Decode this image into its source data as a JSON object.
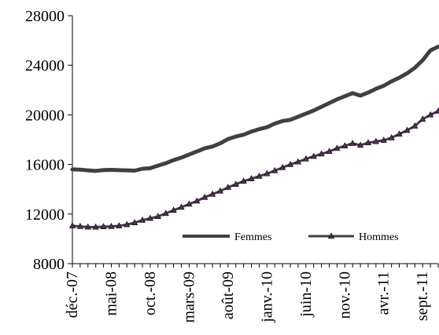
{
  "chart_data": {
    "type": "line",
    "title": "",
    "xlabel": "",
    "ylabel": "",
    "ylim": [
      8000,
      28000
    ],
    "yticks": [
      8000,
      12000,
      16000,
      20000,
      24000,
      28000
    ],
    "x_tick_labels": [
      "déc.-07",
      "mai-08",
      "oct.-08",
      "mars-09",
      "août-09",
      "janv.-10",
      "juin-10",
      "nov.-10",
      "avr.-11",
      "sept.-11"
    ],
    "x": [
      "déc.-07",
      "janv.-08",
      "févr.-08",
      "mars-08",
      "avr.-08",
      "mai-08",
      "juin-08",
      "juil.-08",
      "août-08",
      "sept.-08",
      "oct.-08",
      "nov.-08",
      "déc.-08",
      "janv.-09",
      "févr.-09",
      "mars-09",
      "avr.-09",
      "mai-09",
      "juin-09",
      "juil.-09",
      "août-09",
      "sept.-09",
      "oct.-09",
      "nov.-09",
      "déc.-09",
      "janv.-10",
      "févr.-10",
      "mars-10",
      "avr.-10",
      "mai-10",
      "juin-10",
      "juil.-10",
      "août-10",
      "sept.-10",
      "oct.-10",
      "nov.-10",
      "déc.-10",
      "janv.-11",
      "févr.-11",
      "mars-11",
      "avr.-11",
      "mai-11",
      "juin-11",
      "juil.-11",
      "août-11",
      "sept.-11",
      "oct.-11",
      "nov.-11"
    ],
    "legend_position": "bottom-right inside plot",
    "grid": false,
    "series": [
      {
        "name": "Femmes",
        "color": "#404040",
        "marker": "none",
        "values": [
          15600,
          15580,
          15520,
          15480,
          15550,
          15560,
          15540,
          15520,
          15500,
          15650,
          15700,
          15900,
          16100,
          16350,
          16550,
          16800,
          17050,
          17300,
          17450,
          17700,
          18050,
          18250,
          18400,
          18650,
          18850,
          19000,
          19300,
          19500,
          19600,
          19850,
          20100,
          20350,
          20650,
          20950,
          21250,
          21500,
          21750,
          21550,
          21800,
          22100,
          22350,
          22700,
          23000,
          23350,
          23800,
          24400,
          25200,
          25500
        ]
      },
      {
        "name": "Hommes",
        "color": "#404040",
        "marker": "triangle",
        "marker_color": "#5a2a60",
        "values": [
          11050,
          11000,
          10950,
          10950,
          10980,
          11000,
          11050,
          11150,
          11300,
          11500,
          11650,
          11800,
          12050,
          12300,
          12550,
          12800,
          13050,
          13350,
          13600,
          13850,
          14150,
          14400,
          14650,
          14850,
          15050,
          15250,
          15500,
          15750,
          16000,
          16200,
          16450,
          16650,
          16850,
          17050,
          17300,
          17500,
          17700,
          17550,
          17750,
          17850,
          17950,
          18150,
          18450,
          18750,
          19100,
          19650,
          20000,
          20300
        ]
      }
    ]
  }
}
